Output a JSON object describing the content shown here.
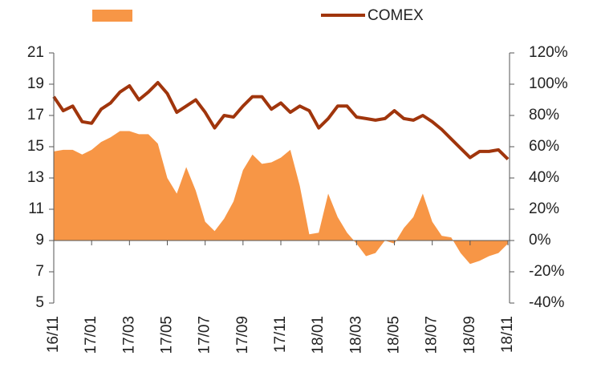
{
  "chart_data": {
    "type": "line",
    "categories": [
      "16/11",
      null,
      null,
      null,
      "17/01",
      null,
      null,
      null,
      "17/03",
      null,
      null,
      null,
      "17/05",
      null,
      null,
      null,
      "17/07",
      null,
      null,
      null,
      "17/09",
      null,
      null,
      null,
      "17/11",
      null,
      null,
      null,
      "18/01",
      null,
      null,
      null,
      "18/03",
      null,
      null,
      null,
      "18/05",
      null,
      null,
      null,
      "18/07",
      null,
      null,
      null,
      "18/09",
      null,
      null,
      null,
      "18/11"
    ],
    "series": [
      {
        "type": "area",
        "color": "#f79646",
        "axis": "y2",
        "values": [
          57,
          58,
          58,
          55,
          58,
          63,
          66,
          70,
          70,
          68,
          68,
          62,
          40,
          30,
          47,
          32,
          12,
          6,
          14,
          25,
          45,
          55,
          49,
          50,
          53,
          58,
          35,
          4,
          5,
          30,
          15,
          5,
          -2,
          -10,
          -8,
          0,
          -2,
          8,
          15,
          30,
          12,
          3,
          2,
          -8,
          -15,
          -13,
          -10,
          -8,
          -2
        ]
      },
      {
        "name": "COMEX",
        "type": "line",
        "color": "#a0350c",
        "values": [
          18.2,
          17.3,
          17.6,
          16.6,
          16.5,
          17.4,
          17.8,
          18.5,
          18.9,
          18.0,
          18.5,
          19.1,
          18.4,
          17.2,
          17.6,
          18.0,
          17.2,
          16.2,
          17.0,
          16.9,
          17.6,
          18.2,
          18.2,
          17.4,
          17.8,
          17.2,
          17.6,
          17.3,
          16.2,
          16.8,
          17.6,
          17.6,
          16.9,
          16.8,
          16.7,
          16.8,
          17.3,
          16.8,
          16.7,
          17.0,
          16.6,
          16.1,
          15.5,
          14.9,
          14.3,
          14.7,
          14.7,
          14.8,
          14.2
        ]
      }
    ],
    "ylim": [
      5,
      21
    ],
    "yticks": [
      5,
      7,
      9,
      11,
      13,
      15,
      17,
      19,
      21
    ],
    "y2lim": [
      -40,
      120
    ],
    "y2ticks": [
      {
        "value": -40,
        "label": "-40%"
      },
      {
        "value": -20,
        "label": "-20%"
      },
      {
        "value": 0,
        "label": "0%"
      },
      {
        "value": 20,
        "label": "20%"
      },
      {
        "value": 40,
        "label": "40%"
      },
      {
        "value": 60,
        "label": "60%"
      },
      {
        "value": 80,
        "label": "80%"
      },
      {
        "value": 100,
        "label": "100%"
      },
      {
        "value": 120,
        "label": "120%"
      }
    ],
    "grid": false,
    "legend": "top"
  }
}
